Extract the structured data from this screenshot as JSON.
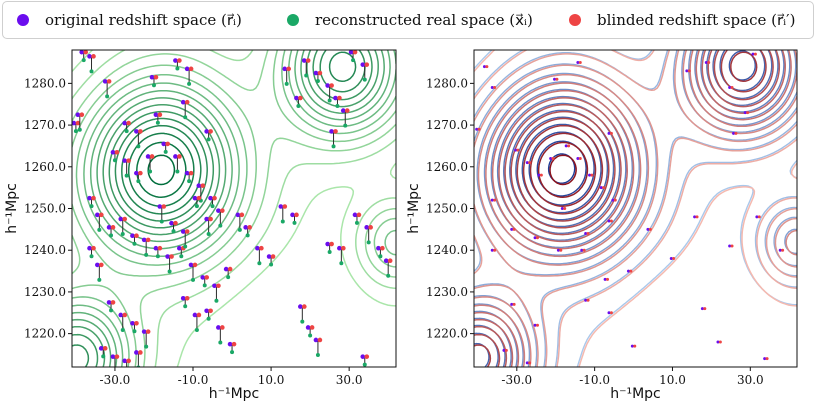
{
  "legend": [
    {
      "label": "original redshift space (r⃗ᵢ)",
      "color": "#6a0dee"
    },
    {
      "label": "reconstructed real space (x⃗ᵢ)",
      "color": "#1aa866"
    },
    {
      "label": "blinded redshift space (r⃗ᵢ′)",
      "color": "#ee4444"
    }
  ],
  "chart_data": [
    {
      "type": "scatter",
      "title": "",
      "xlabel": "h⁻¹Mpc",
      "ylabel": "h⁻¹Mpc",
      "xlim": [
        -41,
        42
      ],
      "ylim": [
        1212,
        1288
      ],
      "xticks": [
        -30,
        -10,
        10,
        30
      ],
      "xtick_labels": [
        "-30.0",
        "-10.0",
        "10.0",
        "30.0"
      ],
      "yticks": [
        1220,
        1230,
        1240,
        1250,
        1260,
        1270,
        1280
      ],
      "ytick_labels": [
        "1220.0",
        "1230.0",
        "1240.0",
        "1250.0",
        "1260.0",
        "1270.0",
        "1280.0"
      ],
      "contours": "reconstructed real-space density field (greens)",
      "galaxies": [
        [
          -38,
          1287
        ],
        [
          -36,
          1286
        ],
        [
          -40,
          1270
        ],
        [
          -39,
          1272
        ],
        [
          -27,
          1270
        ],
        [
          -24,
          1268
        ],
        [
          -19,
          1272
        ],
        [
          -12,
          1275
        ],
        [
          -30,
          1263
        ],
        [
          -27,
          1261
        ],
        [
          -24,
          1258
        ],
        [
          -21,
          1262
        ],
        [
          -17,
          1265
        ],
        [
          -14,
          1262
        ],
        [
          -11,
          1258
        ],
        [
          -8,
          1255
        ],
        [
          -5,
          1252
        ],
        [
          -3,
          1249
        ],
        [
          -36,
          1252
        ],
        [
          -34,
          1248
        ],
        [
          -31,
          1245
        ],
        [
          -28,
          1247
        ],
        [
          -25,
          1243
        ],
        [
          -22,
          1242
        ],
        [
          -19,
          1240
        ],
        [
          -16,
          1238
        ],
        [
          -13,
          1240
        ],
        [
          -10,
          1236
        ],
        [
          -7,
          1233
        ],
        [
          -4,
          1231
        ],
        [
          -1,
          1235
        ],
        [
          2,
          1248
        ],
        [
          4,
          1245
        ],
        [
          7,
          1240
        ],
        [
          10,
          1238
        ],
        [
          13,
          1250
        ],
        [
          16,
          1248
        ],
        [
          -18,
          1250
        ],
        [
          -15,
          1246
        ],
        [
          -12,
          1244
        ],
        [
          -9,
          1252
        ],
        [
          -6,
          1247
        ],
        [
          -36,
          1240
        ],
        [
          -34,
          1236
        ],
        [
          -31,
          1227
        ],
        [
          -28,
          1224
        ],
        [
          -25,
          1222
        ],
        [
          -22,
          1220
        ],
        [
          -33,
          1216
        ],
        [
          -30,
          1214
        ],
        [
          -27,
          1213
        ],
        [
          -24,
          1215
        ],
        [
          -12,
          1228
        ],
        [
          -9,
          1224
        ],
        [
          -6,
          1225
        ],
        [
          -3,
          1221
        ],
        [
          0,
          1217
        ],
        [
          18,
          1226
        ],
        [
          20,
          1221
        ],
        [
          22,
          1218
        ],
        [
          25,
          1241
        ],
        [
          28,
          1240
        ],
        [
          32,
          1248
        ],
        [
          35,
          1245
        ],
        [
          38,
          1240
        ],
        [
          40,
          1237
        ],
        [
          34,
          1214
        ],
        [
          19,
          1285
        ],
        [
          22,
          1282
        ],
        [
          25,
          1279
        ],
        [
          27,
          1276
        ],
        [
          29,
          1273
        ],
        [
          31,
          1287
        ],
        [
          34,
          1284
        ],
        [
          -14,
          1285
        ],
        [
          -11,
          1283
        ],
        [
          -6,
          1268
        ],
        [
          14,
          1283
        ],
        [
          17,
          1276
        ],
        [
          26,
          1268
        ],
        [
          -20,
          1281
        ],
        [
          -32,
          1280
        ]
      ]
    },
    {
      "type": "scatter",
      "title": "",
      "xlabel": "h⁻¹Mpc",
      "ylabel": "h⁻¹Mpc",
      "xlim": [
        -41,
        42
      ],
      "ylim": [
        1212,
        1288
      ],
      "xticks": [
        -30,
        -10,
        10,
        30
      ],
      "xtick_labels": [
        "-30.0",
        "-10.0",
        "10.0",
        "30.0"
      ],
      "yticks": [
        1220,
        1230,
        1240,
        1250,
        1260,
        1270,
        1280
      ],
      "ytick_labels": [
        "1220.0",
        "1230.0",
        "1240.0",
        "1250.0",
        "1260.0",
        "1270.0",
        "1280.0"
      ],
      "contours": "original (blue) and blinded (red) redshift-space density fields",
      "galaxies": [
        [
          -38,
          1284
        ],
        [
          -36,
          1279
        ],
        [
          -40,
          1269
        ],
        [
          -30,
          1264
        ],
        [
          -27,
          1261
        ],
        [
          -24,
          1258
        ],
        [
          -21,
          1262
        ],
        [
          -17,
          1265
        ],
        [
          -14,
          1262
        ],
        [
          -11,
          1258
        ],
        [
          -8,
          1255
        ],
        [
          -5,
          1252
        ],
        [
          -36,
          1252
        ],
        [
          -31,
          1245
        ],
        [
          -25,
          1243
        ],
        [
          -19,
          1240
        ],
        [
          -13,
          1240
        ],
        [
          -7,
          1233
        ],
        [
          -1,
          1235
        ],
        [
          4,
          1245
        ],
        [
          10,
          1238
        ],
        [
          16,
          1248
        ],
        [
          -18,
          1250
        ],
        [
          -12,
          1244
        ],
        [
          -6,
          1247
        ],
        [
          -36,
          1240
        ],
        [
          -31,
          1227
        ],
        [
          -25,
          1222
        ],
        [
          -33,
          1216
        ],
        [
          -27,
          1213
        ],
        [
          -12,
          1228
        ],
        [
          -6,
          1225
        ],
        [
          0,
          1217
        ],
        [
          18,
          1226
        ],
        [
          22,
          1218
        ],
        [
          25,
          1241
        ],
        [
          32,
          1248
        ],
        [
          38,
          1240
        ],
        [
          34,
          1214
        ],
        [
          19,
          1285
        ],
        [
          25,
          1279
        ],
        [
          29,
          1273
        ],
        [
          31,
          1287
        ],
        [
          -14,
          1285
        ],
        [
          -6,
          1268
        ],
        [
          14,
          1283
        ],
        [
          26,
          1268
        ],
        [
          -20,
          1281
        ]
      ]
    }
  ]
}
